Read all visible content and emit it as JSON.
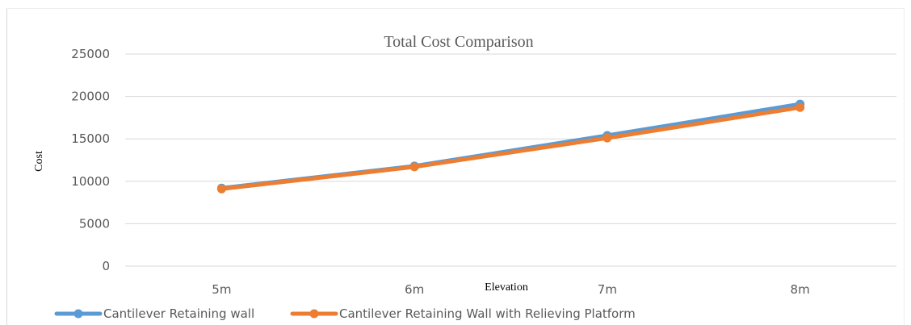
{
  "chart_data": {
    "type": "line",
    "title": "Total Cost Comparison",
    "xlabel": "Elevation",
    "ylabel": "Cost",
    "categories": [
      "5m",
      "6m",
      "7m",
      "8m"
    ],
    "ylim": [
      0,
      25000
    ],
    "yticks": [
      0,
      5000,
      10000,
      15000,
      20000,
      25000
    ],
    "grid": true,
    "legend_position": "bottom",
    "series": [
      {
        "name": "Cantilever Retaining wall",
        "values": [
          9200,
          11800,
          15400,
          19100
        ],
        "color": "#5b9bd5"
      },
      {
        "name": "Cantilever Retaining Wall with Relieving Platform",
        "values": [
          9100,
          11700,
          15100,
          18700
        ],
        "color": "#ed7d31"
      }
    ]
  }
}
